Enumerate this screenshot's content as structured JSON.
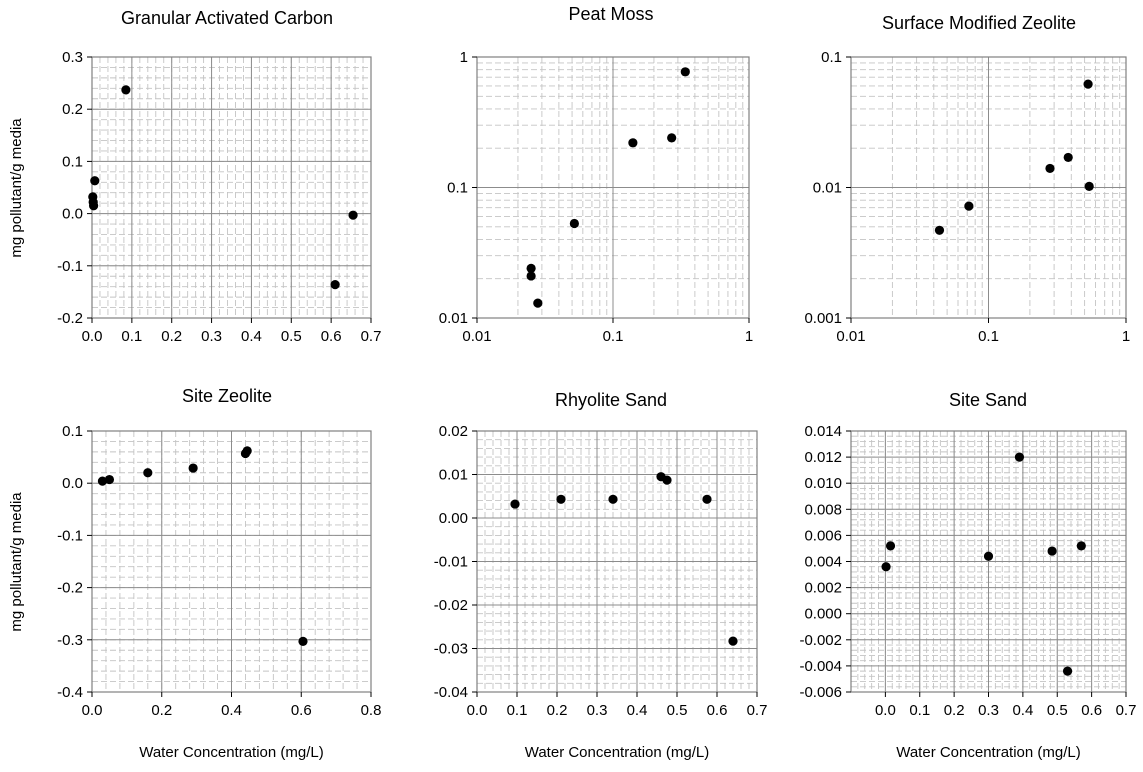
{
  "figure": {
    "xlabel": "Water Concentration (mg/L)",
    "ylabel": "mg pollutant/g media"
  },
  "chart_data": [
    {
      "type": "scatter",
      "title": "Granular Activated Carbon",
      "xlabel": "",
      "ylabel": "mg pollutant/g media",
      "xscale": "linear",
      "yscale": "linear",
      "xlim": [
        0,
        0.7
      ],
      "ylim": [
        -0.2,
        0.3
      ],
      "xticks": [
        0,
        0.1,
        0.2,
        0.3,
        0.4,
        0.5,
        0.6,
        0.7
      ],
      "xtick_labels": [
        "0.0",
        "0.1",
        "0.2",
        "0.3",
        "0.4",
        "0.5",
        "0.6",
        "0.7"
      ],
      "yticks": [
        -0.2,
        -0.1,
        0,
        0.1,
        0.2,
        0.3
      ],
      "ytick_labels": [
        "-0.2",
        "-0.1",
        "0.0",
        "0.1",
        "0.2",
        "0.3"
      ],
      "grid": true,
      "points": [
        [
          0.085,
          0.237
        ],
        [
          0.007,
          0.063
        ],
        [
          0.002,
          0.032
        ],
        [
          0.003,
          0.022
        ],
        [
          0.004,
          0.015
        ],
        [
          0.655,
          -0.003
        ],
        [
          0.61,
          -0.136
        ]
      ]
    },
    {
      "type": "scatter",
      "title": "Peat Moss",
      "xlabel": "",
      "ylabel": "",
      "xscale": "log",
      "yscale": "log",
      "xlim": [
        0.01,
        1
      ],
      "ylim": [
        0.01,
        1
      ],
      "xticks": [
        0.01,
        0.1,
        1
      ],
      "xtick_labels": [
        "0.01",
        "0.1",
        "1"
      ],
      "yticks": [
        0.01,
        0.1,
        1
      ],
      "ytick_labels": [
        "0.01",
        "0.1",
        "1"
      ],
      "grid": true,
      "points": [
        [
          0.34,
          0.77
        ],
        [
          0.27,
          0.24
        ],
        [
          0.14,
          0.22
        ],
        [
          0.052,
          0.053
        ],
        [
          0.025,
          0.024
        ],
        [
          0.025,
          0.021
        ],
        [
          0.028,
          0.013
        ]
      ]
    },
    {
      "type": "scatter",
      "title": "Surface Modified Zeolite",
      "xlabel": "",
      "ylabel": "",
      "xscale": "log",
      "yscale": "log",
      "xlim": [
        0.01,
        1
      ],
      "ylim": [
        0.001,
        0.1
      ],
      "xticks": [
        0.01,
        0.1,
        1
      ],
      "xtick_labels": [
        "0.01",
        "0.1",
        "1"
      ],
      "yticks": [
        0.001,
        0.01,
        0.1
      ],
      "ytick_labels": [
        "0.001",
        "0.01",
        "0.1"
      ],
      "grid": true,
      "points": [
        [
          0.53,
          0.062
        ],
        [
          0.38,
          0.017
        ],
        [
          0.28,
          0.014
        ],
        [
          0.54,
          0.0102
        ],
        [
          0.072,
          0.0072
        ],
        [
          0.044,
          0.0047
        ]
      ]
    },
    {
      "type": "scatter",
      "title": "Site Zeolite",
      "xlabel": "Water Concentration (mg/L)",
      "ylabel": "mg pollutant/g media",
      "xscale": "linear",
      "yscale": "linear",
      "xlim": [
        0,
        0.8
      ],
      "ylim": [
        -0.4,
        0.1
      ],
      "xticks": [
        0,
        0.2,
        0.4,
        0.6,
        0.8
      ],
      "xtick_labels": [
        "0.0",
        "0.2",
        "0.4",
        "0.6",
        "0.8"
      ],
      "yticks": [
        -0.4,
        -0.3,
        -0.2,
        -0.1,
        0,
        0.1
      ],
      "ytick_labels": [
        "-0.4",
        "-0.3",
        "-0.2",
        "-0.1",
        "0.0",
        "0.1"
      ],
      "grid": true,
      "points": [
        [
          0.03,
          0.004
        ],
        [
          0.05,
          0.007
        ],
        [
          0.16,
          0.02
        ],
        [
          0.29,
          0.029
        ],
        [
          0.44,
          0.057
        ],
        [
          0.445,
          0.062
        ],
        [
          0.605,
          -0.303
        ]
      ]
    },
    {
      "type": "scatter",
      "title": "Rhyolite Sand",
      "xlabel": "Water Concentration (mg/L)",
      "ylabel": "",
      "xscale": "linear",
      "yscale": "linear",
      "xlim": [
        0,
        0.7
      ],
      "ylim": [
        -0.04,
        0.02
      ],
      "xticks": [
        0,
        0.1,
        0.2,
        0.3,
        0.4,
        0.5,
        0.6,
        0.7
      ],
      "xtick_labels": [
        "0.0",
        "0.1",
        "0.2",
        "0.3",
        "0.4",
        "0.5",
        "0.6",
        "0.7"
      ],
      "yticks": [
        -0.04,
        -0.03,
        -0.02,
        -0.01,
        0,
        0.01,
        0.02
      ],
      "ytick_labels": [
        "-0.04",
        "-0.03",
        "-0.02",
        "-0.01",
        "0.00",
        "0.01",
        "0.02"
      ],
      "grid": true,
      "points": [
        [
          0.095,
          0.0032
        ],
        [
          0.21,
          0.0043
        ],
        [
          0.34,
          0.0043
        ],
        [
          0.46,
          0.0095
        ],
        [
          0.475,
          0.0087
        ],
        [
          0.575,
          0.0043
        ],
        [
          0.64,
          -0.0283
        ]
      ]
    },
    {
      "type": "scatter",
      "title": "Site Sand",
      "xlabel": "Water Concentration (mg/L)",
      "ylabel": "",
      "xscale": "linear",
      "yscale": "linear",
      "xlim": [
        -0.1,
        0.7
      ],
      "ylim": [
        -0.006,
        0.014
      ],
      "xticks": [
        0,
        0.1,
        0.2,
        0.3,
        0.4,
        0.5,
        0.6,
        0.7
      ],
      "xtick_labels": [
        "0.0",
        "0.1",
        "0.2",
        "0.3",
        "0.4",
        "0.5",
        "0.6",
        "0.7"
      ],
      "yticks": [
        -0.006,
        -0.004,
        -0.002,
        0,
        0.002,
        0.004,
        0.006,
        0.008,
        0.01,
        0.012,
        0.014
      ],
      "ytick_labels": [
        "-0.006",
        "-0.004",
        "-0.002",
        "0.000",
        "0.002",
        "0.004",
        "0.006",
        "0.008",
        "0.010",
        "0.012",
        "0.014"
      ],
      "grid": true,
      "points": [
        [
          0.39,
          0.012
        ],
        [
          0.57,
          0.0052
        ],
        [
          0.015,
          0.0052
        ],
        [
          0.485,
          0.0048
        ],
        [
          0.3,
          0.0044
        ],
        [
          0.002,
          0.0036
        ],
        [
          0.53,
          -0.0044
        ]
      ]
    }
  ]
}
